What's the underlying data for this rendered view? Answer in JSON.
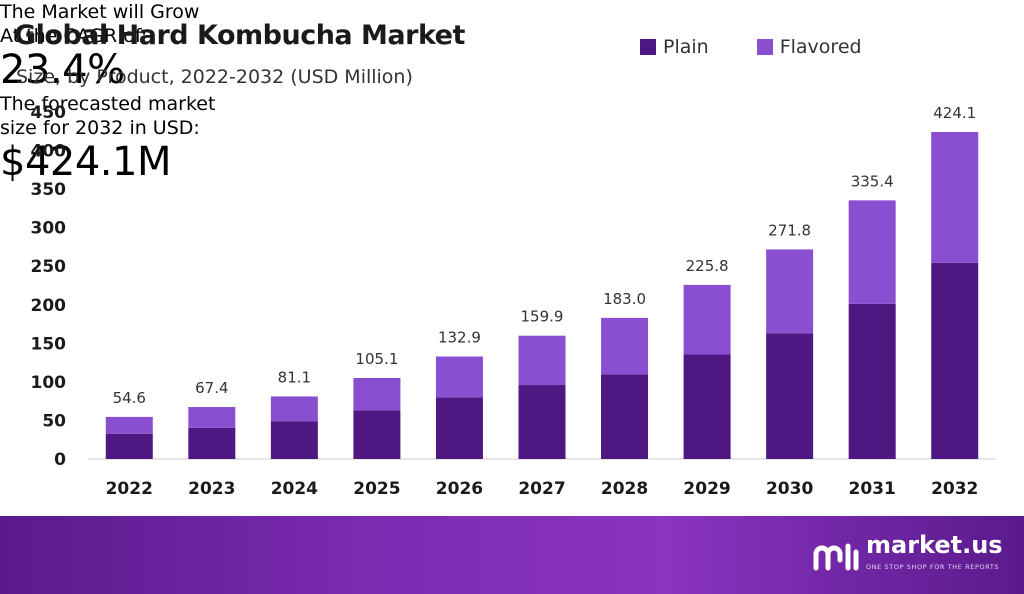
{
  "header": {
    "title": "Global Hard Kombucha Market",
    "subtitle": "Size, by Product, 2022-2032 (USD Million)"
  },
  "colors": {
    "plain": "#4e1782",
    "flavored": "#8a4fd0",
    "banner": "#7a2bb0"
  },
  "chart_data": {
    "type": "bar",
    "stacked": true,
    "title": "Global Hard Kombucha Market",
    "subtitle": "Size, by Product, 2022-2032 (USD Million)",
    "categories": [
      "2022",
      "2023",
      "2024",
      "2025",
      "2026",
      "2027",
      "2028",
      "2029",
      "2030",
      "2031",
      "2032"
    ],
    "series": [
      {
        "name": "Plain",
        "values": [
          32.8,
          40.4,
          48.7,
          63.1,
          79.7,
          95.9,
          109.8,
          135.5,
          163.1,
          201.2,
          254.5
        ]
      },
      {
        "name": "Flavored",
        "values": [
          21.8,
          27.0,
          32.4,
          42.0,
          53.2,
          64.0,
          73.2,
          90.3,
          108.7,
          134.2,
          169.6
        ]
      }
    ],
    "totals": [
      "54.6",
      "67.4",
      "81.1",
      "105.1",
      "132.9",
      "159.9",
      "183.0",
      "225.8",
      "271.8",
      "335.4",
      "424.1"
    ],
    "yticks": [
      "0",
      "50",
      "100",
      "150",
      "200",
      "250",
      "300",
      "350",
      "400",
      "450"
    ],
    "ylim": [
      0,
      450
    ],
    "legend_position": "top-right",
    "grid": false
  },
  "banner": {
    "cagr_line1": "The Market will Grow",
    "cagr_line2": "At the CAGR of:",
    "cagr_value": "23.4%",
    "forecast_line1": "The forecasted market",
    "forecast_line2": "size for 2032 in USD:",
    "forecast_value": "$424.1M",
    "brand_name": "market.us",
    "brand_tagline": "ONE STOP SHOP FOR THE REPORTS"
  }
}
